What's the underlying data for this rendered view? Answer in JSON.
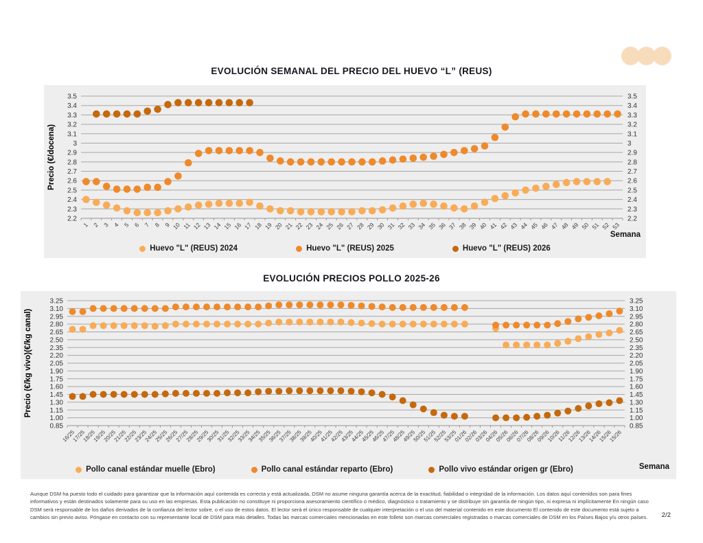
{
  "page": {
    "page_number": "2/2",
    "disclaimer": "Aunque DSM ha puesto todo el cuidado para garantizar que la información aquí contenida es correcta y está actualizada, DSM no asume ninguna garantía acerca de la exactitud, fiabilidad o integridad de la información. Los datos aquí contenidos son para fines informativos y están destinados solamente para su uso en las empresas. Esta publicación no constituye ni proporciona asesoramiento científico o médico, diagnóstico o tratamiento y se distribuye sin garantía de ningún tipo, ni expresa ni implícitamente En ningún caso DSM será responsable de los daños derivados de la confianza del lector sobre, o el uso de estos datos. El lector será el único responsable de cualquier interpretación o el uso del material contenido en este documento El contenido de este documento está sujeto a cambios sin previo aviso. Póngase en contacto con su representante local de DSM para más detalles. Todas las marcas comerciales mencionadas en este folleto son marcas comerciales registradas o marcas comerciales de DSM en los Países Bajos y/u otros países."
  },
  "decor": {
    "circle_color": "#F7DCBC",
    "circle_count": 3
  },
  "chart_data": [
    {
      "type": "scatter",
      "title": "EVOLUCIÓN SEMANAL DEL PRECIO DEL HUEVO “L” (REUS)",
      "xlabel": "Semana",
      "ylabel": "Precio (€/docena)",
      "ylim": [
        2.2,
        3.5
      ],
      "ytick_step": 0.1,
      "ytick_decimals": 1,
      "strip_zeros": true,
      "grid": true,
      "legend_position": "bottom",
      "ytick_labels_both_sides": true,
      "background": "#efeeee",
      "categories": [
        "1",
        "2",
        "3",
        "4",
        "5",
        "6",
        "7",
        "8",
        "9",
        "10",
        "11",
        "12",
        "13",
        "14",
        "15",
        "16",
        "17",
        "18",
        "19",
        "20",
        "21",
        "22",
        "23",
        "24",
        "25",
        "26",
        "27",
        "28",
        "29",
        "30",
        "31",
        "32",
        "33",
        "34",
        "35",
        "36",
        "37",
        "38",
        "39",
        "40",
        "41",
        "42",
        "43",
        "44",
        "45",
        "46",
        "47",
        "48",
        "49",
        "50",
        "51",
        "52",
        "53"
      ],
      "series": [
        {
          "name": "Huevo \"L\" (REUS) 2024",
          "color": "#F8AC57",
          "values": [
            2.4,
            2.37,
            2.34,
            2.31,
            2.28,
            2.26,
            2.26,
            2.26,
            2.28,
            2.3,
            2.32,
            2.34,
            2.35,
            2.36,
            2.36,
            2.36,
            2.37,
            2.33,
            2.3,
            2.28,
            2.28,
            2.27,
            2.27,
            2.27,
            2.27,
            2.27,
            2.27,
            2.28,
            2.28,
            2.29,
            2.31,
            2.33,
            2.35,
            2.36,
            2.35,
            2.33,
            2.31,
            2.3,
            2.33,
            2.37,
            2.41,
            2.44,
            2.47,
            2.5,
            2.52,
            2.54,
            2.56,
            2.58,
            2.59,
            2.59,
            2.59,
            2.59,
            null
          ]
        },
        {
          "name": "Huevo \"L\" (REUS) 2025",
          "color": "#EE8A2B",
          "values": [
            2.59,
            2.59,
            2.54,
            2.51,
            2.51,
            2.51,
            2.53,
            2.53,
            2.59,
            2.65,
            2.79,
            2.89,
            2.92,
            2.92,
            2.92,
            2.92,
            2.92,
            2.9,
            2.84,
            2.81,
            2.8,
            2.8,
            2.8,
            2.8,
            2.8,
            2.8,
            2.8,
            2.8,
            2.8,
            2.81,
            2.82,
            2.83,
            2.84,
            2.85,
            2.86,
            2.88,
            2.9,
            2.92,
            2.94,
            2.97,
            3.06,
            3.17,
            3.28,
            3.31,
            3.31,
            3.31,
            3.31,
            3.31,
            3.31,
            3.31,
            3.31,
            3.31,
            3.31
          ]
        },
        {
          "name": "Huevo \"L\" (REUS) 2026",
          "color": "#C4690E",
          "values": [
            null,
            3.31,
            3.31,
            3.31,
            3.31,
            3.31,
            3.34,
            3.36,
            3.41,
            3.43,
            3.43,
            3.43,
            3.43,
            3.43,
            3.43,
            3.43,
            3.43,
            null,
            null,
            null,
            null,
            null,
            null,
            null,
            null,
            null,
            null,
            null,
            null,
            null,
            null,
            null,
            null,
            null,
            null,
            null,
            null,
            null,
            null,
            null,
            null,
            null,
            null,
            null,
            null,
            null,
            null,
            null,
            null,
            null,
            null,
            null,
            null
          ]
        }
      ]
    },
    {
      "type": "scatter",
      "title": "EVOLUCIÓN PRECIOS POLLO 2025-26",
      "xlabel": "Semana",
      "ylabel": "Precio (€/kg vivo)(€/kg canal)",
      "ylim": [
        0.85,
        3.25
      ],
      "ytick_step": 0.15,
      "ytick_decimals": 2,
      "strip_zeros": false,
      "grid": true,
      "legend_position": "bottom",
      "ytick_labels_both_sides": true,
      "background": "#efeeee",
      "categories": [
        "16/25",
        "17/25",
        "18/25",
        "19/25",
        "20/25",
        "21/25",
        "22/25",
        "23/25",
        "24/25",
        "25/25",
        "26/25",
        "27/25",
        "28/25",
        "29/25",
        "30/25",
        "31/25",
        "32/25",
        "33/25",
        "34/25",
        "35/25",
        "36/25",
        "37/25",
        "38/25",
        "39/25",
        "40/25",
        "41/25",
        "42/25",
        "43/25",
        "44/25",
        "45/25",
        "46/25",
        "47/25",
        "48/25",
        "49/25",
        "50/25",
        "51/25",
        "52/25",
        "53/25",
        "01/26",
        "02/26",
        "03/26",
        "04/26",
        "05/26",
        "06/26",
        "07/26",
        "08/26",
        "09/26",
        "10/26",
        "11/26",
        "12/26",
        "13/26",
        "14/26",
        "15/26",
        "15/26"
      ],
      "series": [
        {
          "name": "Pollo canal estándar muelle (Ebro)",
          "color": "#F8AC57",
          "values": [
            2.7,
            2.7,
            2.77,
            2.77,
            2.77,
            2.77,
            2.77,
            2.77,
            2.76,
            2.77,
            2.8,
            2.8,
            2.8,
            2.8,
            2.8,
            2.8,
            2.8,
            2.8,
            2.8,
            2.82,
            2.84,
            2.84,
            2.84,
            2.84,
            2.84,
            2.84,
            2.84,
            2.83,
            2.82,
            2.81,
            2.8,
            2.8,
            2.8,
            2.8,
            2.8,
            2.8,
            2.8,
            2.8,
            2.8,
            null,
            null,
            2.72,
            2.4,
            2.4,
            2.4,
            2.4,
            2.4,
            2.43,
            2.47,
            2.52,
            2.56,
            2.6,
            2.63,
            2.68
          ]
        },
        {
          "name": "Pollo canal estándar reparto (Ebro)",
          "color": "#EE8A2B",
          "values": [
            3.04,
            3.04,
            3.1,
            3.1,
            3.1,
            3.1,
            3.1,
            3.1,
            3.1,
            3.1,
            3.13,
            3.13,
            3.13,
            3.13,
            3.13,
            3.13,
            3.13,
            3.13,
            3.13,
            3.15,
            3.17,
            3.17,
            3.17,
            3.17,
            3.17,
            3.17,
            3.17,
            3.16,
            3.15,
            3.14,
            3.13,
            3.12,
            3.12,
            3.12,
            3.12,
            3.12,
            3.12,
            3.12,
            3.12,
            null,
            null,
            2.78,
            2.78,
            2.78,
            2.78,
            2.78,
            2.78,
            2.81,
            2.85,
            2.9,
            2.93,
            2.96,
            3.0,
            3.05
          ]
        },
        {
          "name": "Pollo vivo estándar origen gr (Ebro)",
          "color": "#C4690E",
          "values": [
            1.41,
            1.41,
            1.45,
            1.45,
            1.45,
            1.45,
            1.45,
            1.45,
            1.45,
            1.46,
            1.47,
            1.47,
            1.47,
            1.47,
            1.47,
            1.48,
            1.48,
            1.48,
            1.5,
            1.51,
            1.51,
            1.52,
            1.52,
            1.52,
            1.52,
            1.52,
            1.52,
            1.51,
            1.5,
            1.48,
            1.45,
            1.4,
            1.33,
            1.25,
            1.17,
            1.1,
            1.05,
            1.03,
            1.03,
            null,
            null,
            1.0,
            1.0,
            1.0,
            1.01,
            1.03,
            1.05,
            1.09,
            1.13,
            1.18,
            1.23,
            1.27,
            1.29,
            1.33
          ]
        }
      ]
    }
  ]
}
